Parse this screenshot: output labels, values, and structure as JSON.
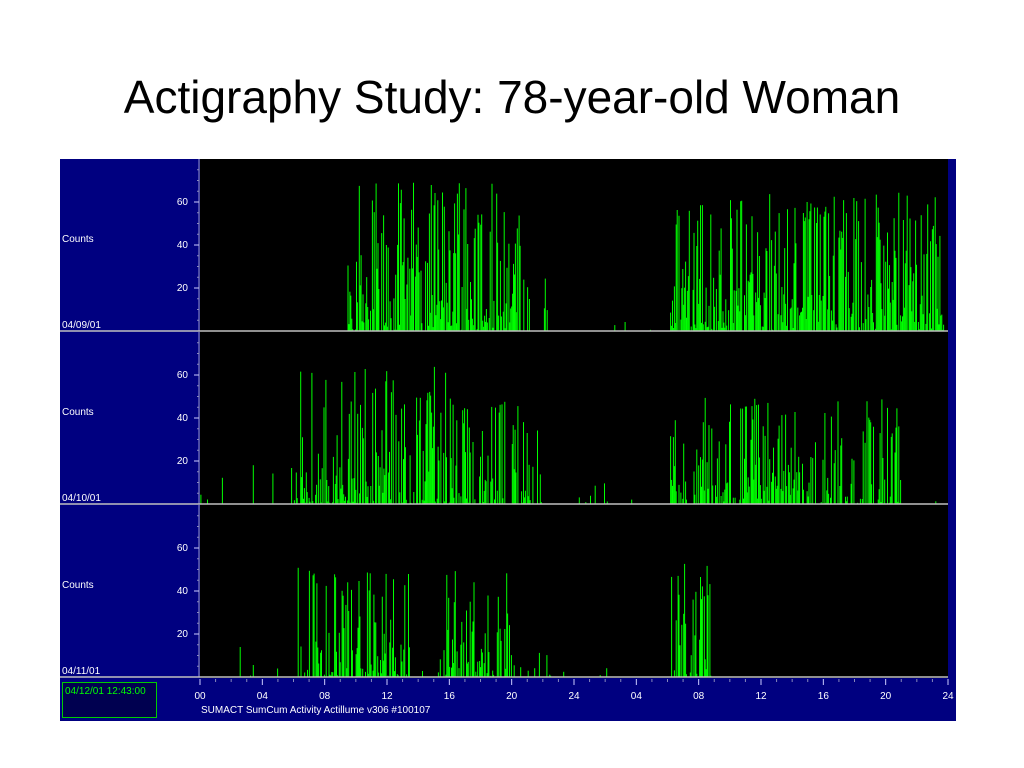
{
  "slide": {
    "title": "Actigraphy Study: 78-year-old Woman"
  },
  "panel": {
    "timestamp": "04/12/01 12:43:00",
    "footer": "SUMACT  SumCum Activity Actillume v306 #100107"
  },
  "chart_data": {
    "type": "bar",
    "ylabel": "Counts",
    "ylim": [
      0,
      80
    ],
    "yticks": [
      20,
      40,
      60
    ],
    "x_tick_labels": [
      "00",
      "04",
      "08",
      "12",
      "16",
      "20",
      "24",
      "04",
      "08",
      "12",
      "16",
      "20",
      "24"
    ],
    "x_hours_span": [
      0,
      48
    ],
    "rows": [
      {
        "date": "04/09/01",
        "data_end_hour": 48,
        "bursts": [
          {
            "start": 9.5,
            "end": 20.6,
            "peak": 70,
            "density": 0.9
          },
          {
            "start": 20.6,
            "end": 22.3,
            "peak": 40,
            "density": 0.35
          },
          {
            "start": 30.2,
            "end": 47.8,
            "peak": 65,
            "density": 0.9
          }
        ],
        "quiet": [
          {
            "start": 22.3,
            "end": 30.2,
            "peak": 16,
            "density": 0.05
          }
        ]
      },
      {
        "date": "04/10/01",
        "data_end_hour": 48,
        "bursts": [
          {
            "start": 6.4,
            "end": 16.5,
            "peak": 64,
            "density": 0.8
          },
          {
            "start": 16.5,
            "end": 22.0,
            "peak": 48,
            "density": 0.6
          },
          {
            "start": 30.2,
            "end": 38.0,
            "peak": 50,
            "density": 0.85
          },
          {
            "start": 38.0,
            "end": 45.0,
            "peak": 50,
            "density": 0.6
          }
        ],
        "quiet": [
          {
            "start": 0.0,
            "end": 6.4,
            "peak": 22,
            "density": 0.06
          },
          {
            "start": 22.0,
            "end": 30.2,
            "peak": 10,
            "density": 0.06
          },
          {
            "start": 45.0,
            "end": 47.8,
            "peak": 10,
            "density": 0.05
          }
        ]
      },
      {
        "date": "04/11/01",
        "data_end_hour": 32.8,
        "bursts": [
          {
            "start": 6.3,
            "end": 13.5,
            "peak": 51,
            "density": 0.8
          },
          {
            "start": 15.3,
            "end": 19.8,
            "peak": 50,
            "density": 0.75
          },
          {
            "start": 19.8,
            "end": 22.5,
            "peak": 28,
            "density": 0.3
          },
          {
            "start": 30.2,
            "end": 32.8,
            "peak": 56,
            "density": 0.7
          }
        ],
        "quiet": [
          {
            "start": 0.0,
            "end": 6.3,
            "peak": 17,
            "density": 0.06
          },
          {
            "start": 13.5,
            "end": 15.3,
            "peak": 10,
            "density": 0.1
          },
          {
            "start": 22.5,
            "end": 30.2,
            "peak": 8,
            "density": 0.07
          }
        ]
      }
    ]
  }
}
